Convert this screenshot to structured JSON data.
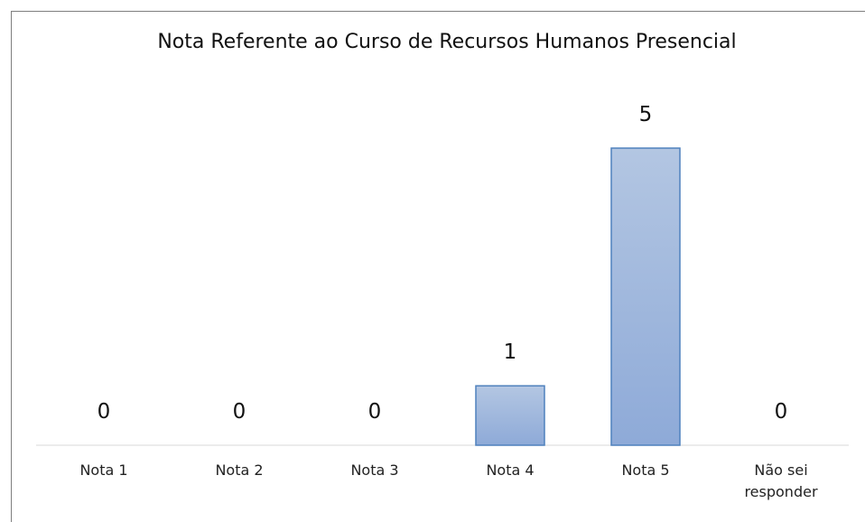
{
  "chart_data": {
    "type": "bar",
    "title": "Nota Referente ao Curso de Recursos Humanos Presencial",
    "categories": [
      "Nota 1",
      "Nota 2",
      "Nota 3",
      "Nota 4",
      "Nota 5",
      "Não sei responder"
    ],
    "values": [
      0,
      0,
      0,
      1,
      5,
      0
    ],
    "color": "#9db5dc"
  }
}
